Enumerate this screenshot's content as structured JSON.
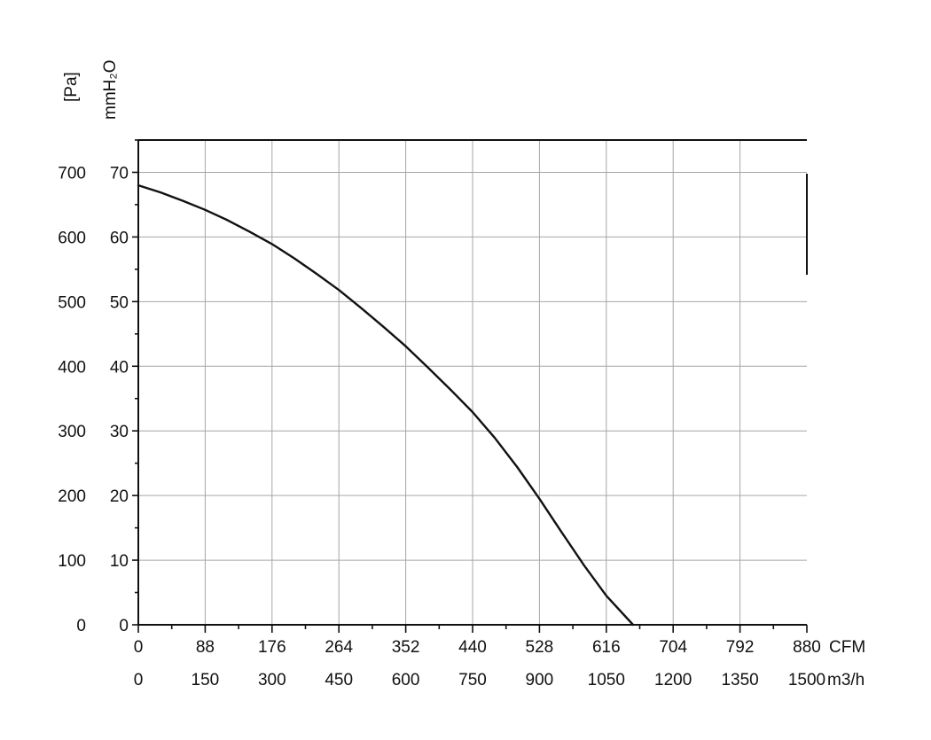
{
  "chart_data": {
    "type": "line",
    "title": "",
    "y_axes": {
      "left_outer": {
        "label": "[Pa]",
        "ticks": [
          "0",
          "100",
          "200",
          "300",
          "400",
          "500",
          "600",
          "700"
        ],
        "range": [
          0,
          750
        ]
      },
      "left_inner": {
        "label": "mmH₂O",
        "ticks": [
          "0",
          "10",
          "20",
          "30",
          "40",
          "50",
          "60",
          "70"
        ],
        "range": [
          0,
          75
        ]
      }
    },
    "x_axes": {
      "primary": {
        "label": "CFM",
        "ticks": [
          "0",
          "88",
          "176",
          "264",
          "352",
          "440",
          "528",
          "616",
          "704",
          "792",
          "880"
        ],
        "range": [
          0,
          880
        ]
      },
      "secondary": {
        "label": "m3/h",
        "ticks": [
          "0",
          "150",
          "300",
          "450",
          "600",
          "750",
          "900",
          "1050",
          "1200",
          "1350",
          "1500"
        ],
        "range": [
          0,
          1500
        ]
      }
    },
    "grid": true,
    "series": [
      {
        "x_unit": "m3/h",
        "y_unit": "Pa",
        "points": [
          [
            0,
            680
          ],
          [
            50,
            669
          ],
          [
            100,
            656
          ],
          [
            150,
            642
          ],
          [
            200,
            626
          ],
          [
            250,
            608
          ],
          [
            300,
            589
          ],
          [
            350,
            567
          ],
          [
            400,
            543
          ],
          [
            450,
            518
          ],
          [
            500,
            490
          ],
          [
            550,
            461
          ],
          [
            600,
            431
          ],
          [
            650,
            398
          ],
          [
            700,
            364
          ],
          [
            750,
            329
          ],
          [
            800,
            289
          ],
          [
            850,
            244
          ],
          [
            900,
            195
          ],
          [
            950,
            143
          ],
          [
            1000,
            92
          ],
          [
            1050,
            45
          ],
          [
            1110,
            0
          ]
        ]
      }
    ]
  },
  "colors": {
    "line": "#111111",
    "grid": "#a6a6a6",
    "background": "#ffffff"
  }
}
